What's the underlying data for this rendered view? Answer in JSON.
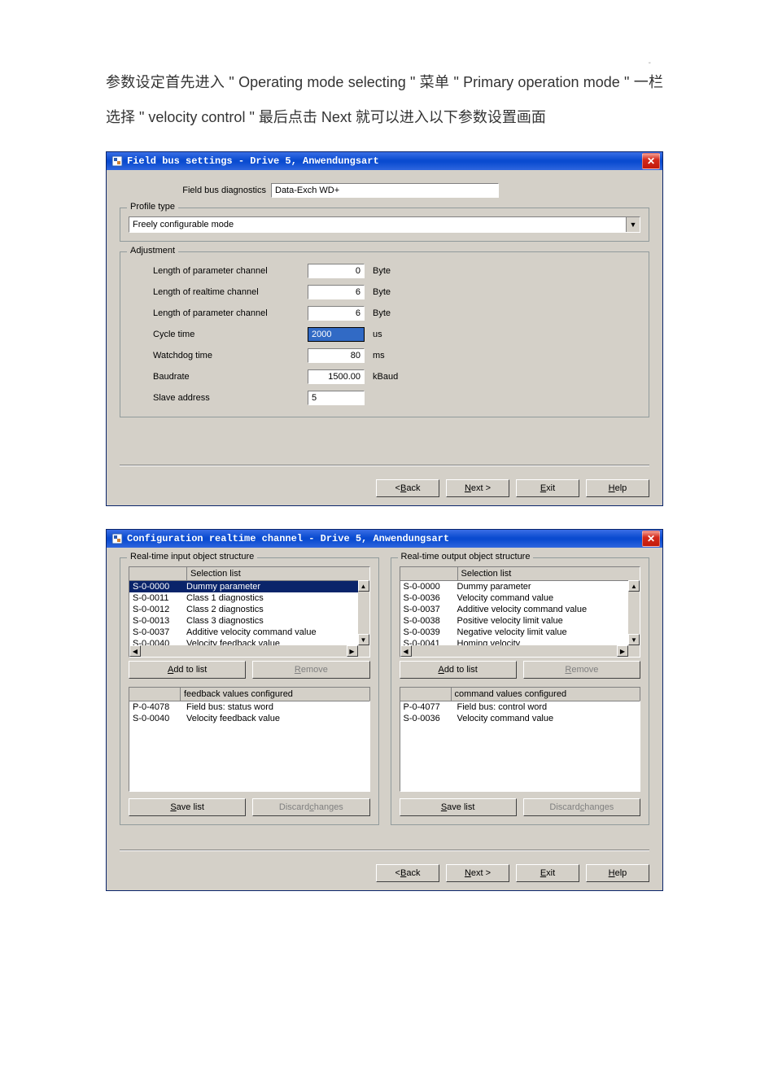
{
  "pageMarker": "-",
  "intro": "参数设定首先进入 \" Operating  mode  selecting \" 菜单 \" Primary operation mode \" 一栏选择 \"  velocity control \" 最后点击 Next 就可以进入以下参数设置画面",
  "dialog1": {
    "title": "Field bus settings - Drive 5,  Anwendungsart",
    "diagnosticsLabel": "Field bus diagnostics",
    "diagnosticsValue": "Data-Exch WD+",
    "profileGroup": "Profile type",
    "profileValue": "Freely configurable mode",
    "adjustGroup": "Adjustment",
    "rows": [
      {
        "label": "Length of parameter channel",
        "value": "0",
        "unit": "Byte",
        "type": "num"
      },
      {
        "label": "Length of realtime channel",
        "value": "6",
        "unit": "Byte",
        "type": "num"
      },
      {
        "label": "Length of parameter channel",
        "value": "6",
        "unit": "Byte",
        "type": "num"
      },
      {
        "label": "Cycle time",
        "value": "2000",
        "unit": "us",
        "type": "focused"
      },
      {
        "label": "Watchdog time",
        "value": "80",
        "unit": "ms",
        "type": "num"
      },
      {
        "label": "Baudrate",
        "value": "1500.00",
        "unit": "kBaud",
        "type": "num"
      },
      {
        "label": "Slave address",
        "value": "5",
        "unit": "",
        "type": "text"
      }
    ],
    "backFirst": "< ",
    "backKey": "B",
    "backRest": "ack",
    "nextKey": "N",
    "nextRest": "ext >",
    "exitKey": "E",
    "exitRest": "xit",
    "helpKey": "H",
    "helpRest": "elp"
  },
  "dialog2": {
    "title": "Configuration realtime channel - Drive 5,  Anwendungsart",
    "inputGroup": "Real-time input object structure",
    "outputGroup": "Real-time output object structure",
    "selHeader": "Selection list",
    "addFirst": "",
    "addKey": "A",
    "addRest": "dd to list",
    "removeFirst": "",
    "removeKey": "R",
    "removeRest": "emove",
    "saveFirst": "",
    "saveKey": "S",
    "saveRest": "ave list",
    "discardFirst": "Discard ",
    "discardKey": "c",
    "discardRest": "hanges",
    "feedbackHeader": "feedback values configured",
    "commandHeader": "command values configured",
    "inputList": [
      {
        "id": "S-0-0000",
        "name": "Dummy parameter",
        "sel": true
      },
      {
        "id": "S-0-0011",
        "name": "Class 1 diagnostics"
      },
      {
        "id": "S-0-0012",
        "name": "Class 2 diagnostics"
      },
      {
        "id": "S-0-0013",
        "name": "Class 3 diagnostics"
      },
      {
        "id": "S-0-0037",
        "name": "Additive velocity command value"
      },
      {
        "id": "S-0-0040",
        "name": "Velocity feedback value"
      }
    ],
    "outputList": [
      {
        "id": "S-0-0000",
        "name": "Dummy parameter"
      },
      {
        "id": "S-0-0036",
        "name": "Velocity command value"
      },
      {
        "id": "S-0-0037",
        "name": "Additive velocity command value"
      },
      {
        "id": "S-0-0038",
        "name": "Positive velocity limit value"
      },
      {
        "id": "S-0-0039",
        "name": "Negative velocity limit value"
      },
      {
        "id": "S-0-0041",
        "name": "Homing velocity"
      }
    ],
    "feedbackConfigured": [
      {
        "id": "P-0-4078",
        "name": "Field bus: status word"
      },
      {
        "id": "S-0-0040",
        "name": "Velocity feedback value"
      }
    ],
    "commandConfigured": [
      {
        "id": "P-0-4077",
        "name": "Field bus: control word"
      },
      {
        "id": "S-0-0036",
        "name": "Velocity command value"
      }
    ],
    "backFirst": "< ",
    "backKey": "B",
    "backRest": "ack",
    "nextKey": "N",
    "nextRest": "ext >",
    "exitKey": "E",
    "exitRest": "xit",
    "helpKey": "H",
    "helpRest": "elp"
  }
}
